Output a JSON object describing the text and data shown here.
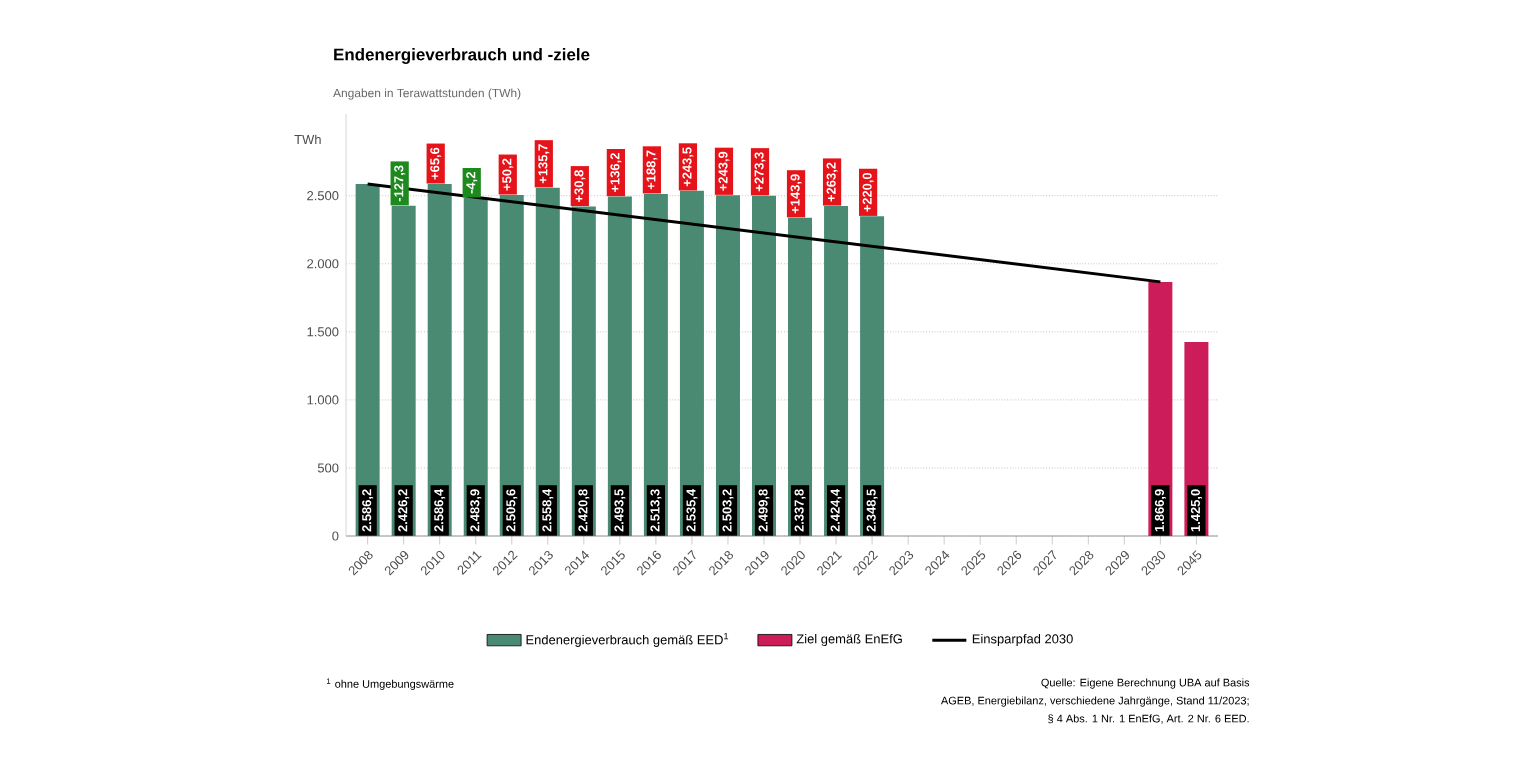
{
  "chart_data": {
    "type": "bar",
    "title": "Endenergieverbrauch und -ziele",
    "subtitle": "Angaben in Terawattstunden (TWh)",
    "ylabel": "TWh",
    "categories": [
      "2008",
      "2009",
      "2010",
      "2011",
      "2012",
      "2013",
      "2014",
      "2015",
      "2016",
      "2017",
      "2018",
      "2019",
      "2020",
      "2021",
      "2022",
      "2023",
      "2024",
      "2025",
      "2026",
      "2027",
      "2028",
      "2029",
      "2030",
      "2045"
    ],
    "series": [
      {
        "name": "Endenergieverbrauch gemäß EED$^{1}$",
        "color": "#4a8a72",
        "values": [
          2586.2,
          2426.2,
          2586.4,
          2483.9,
          2505.6,
          2558.4,
          2420.8,
          2493.5,
          2513.3,
          2535.4,
          2503.2,
          2499.8,
          2337.8,
          2424.4,
          2348.5,
          null,
          null,
          null,
          null,
          null,
          null,
          null,
          null,
          null
        ],
        "value_labels": [
          "2.586,2",
          "2.426,2",
          "2.586,4",
          "2.483,9",
          "2.505,6",
          "2.558,4",
          "2.420,8",
          "2.493,5",
          "2.513,3",
          "2.535,4",
          "2.503,2",
          "2.499,8",
          "2.337,8",
          "2.424,4",
          "2.348,5",
          null,
          null,
          null,
          null,
          null,
          null,
          null,
          null,
          null
        ]
      },
      {
        "name": "Ziel gemäß EnEfG",
        "color": "#cc1c5a",
        "values": [
          null,
          null,
          null,
          null,
          null,
          null,
          null,
          null,
          null,
          null,
          null,
          null,
          null,
          null,
          null,
          null,
          null,
          null,
          null,
          null,
          null,
          null,
          1866.9,
          1425.0
        ],
        "value_labels": [
          null,
          null,
          null,
          null,
          null,
          null,
          null,
          null,
          null,
          null,
          null,
          null,
          null,
          null,
          null,
          null,
          null,
          null,
          null,
          null,
          null,
          null,
          "1.866,9",
          "1.425,0"
        ]
      },
      {
        "name": "Einsparpfad 2030",
        "type": "line",
        "color": "#000000",
        "values": [
          2586.2,
          null,
          null,
          null,
          null,
          null,
          null,
          null,
          null,
          null,
          null,
          null,
          null,
          null,
          null,
          null,
          null,
          null,
          null,
          null,
          null,
          null,
          1866.9,
          null
        ]
      }
    ],
    "ylim": [
      0,
      3100
    ],
    "yticks": [
      {
        "value": 0,
        "label": "0"
      },
      {
        "value": 500,
        "label": "500"
      },
      {
        "value": 1000,
        "label": "1.000"
      },
      {
        "value": 1500,
        "label": "1.500"
      },
      {
        "value": 2000,
        "label": "2.000"
      },
      {
        "value": 2500,
        "label": "2.500"
      }
    ],
    "grid": "y",
    "legend": "bottom",
    "annotations": [
      {
        "text": "-127,3",
        "x": "2009",
        "y": 2426.2
      },
      {
        "text": "+65,6",
        "x": "2010",
        "y": 2586.4
      },
      {
        "text": "-4,2",
        "x": "2011",
        "y": 2483.9
      },
      {
        "text": "+50,2",
        "x": "2012",
        "y": 2505.6
      },
      {
        "text": "+135,7",
        "x": "2013",
        "y": 2558.4
      },
      {
        "text": "+30,8",
        "x": "2014",
        "y": 2420.8
      },
      {
        "text": "+136,2",
        "x": "2015",
        "y": 2493.5
      },
      {
        "text": "+188,7",
        "x": "2016",
        "y": 2513.3
      },
      {
        "text": "+243,5",
        "x": "2017",
        "y": 2535.4
      },
      {
        "text": "+243,9",
        "x": "2018",
        "y": 2503.2
      },
      {
        "text": "+273,3",
        "x": "2019",
        "y": 2499.8
      },
      {
        "text": "+143,9",
        "x": "2020",
        "y": 2337.8
      },
      {
        "text": "+263,2",
        "x": "2021",
        "y": 2424.4
      },
      {
        "text": "+220,0",
        "x": "2022",
        "y": 2348.5
      },
      "$^{1}$ ohne Umgebungswärme",
      "Quelle: Eigene Berechnung UBA auf Basis",
      "AGEB, Energiebilanz, verschiedene Jahrgänge, Stand 11/2023;",
      "§ 4 Abs. 1 Nr. 1 EnEfG, Art. 2 Nr. 6 EED."
    ]
  }
}
